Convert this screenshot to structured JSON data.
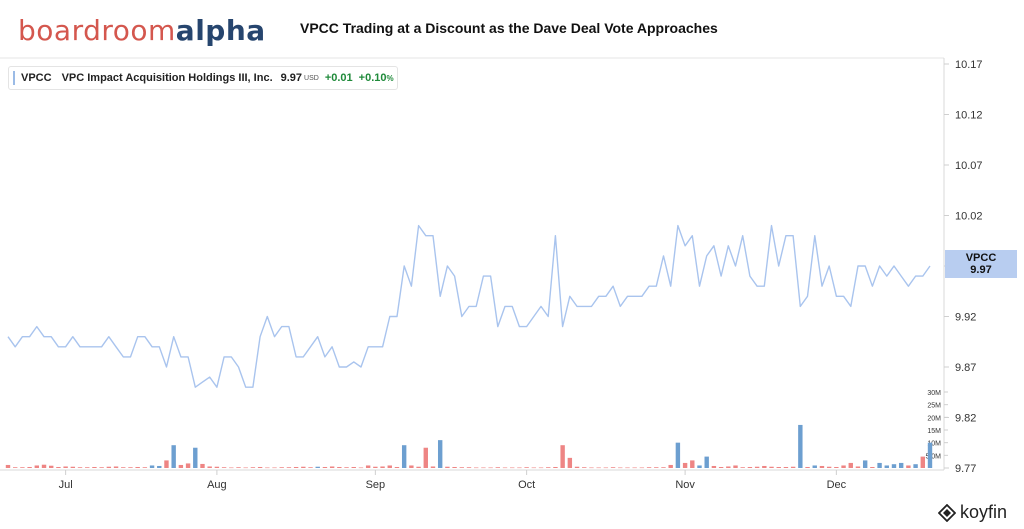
{
  "logo": {
    "part1": "boardroom",
    "part2": "alpha"
  },
  "title": "VPCC Trading at a Discount as the Dave Deal Vote Approaches",
  "legend": {
    "ticker": "VPCC",
    "name": "VPC Impact Acquisition Holdings III, Inc.",
    "price": "9.97",
    "currency": "USD",
    "change": "+0.01",
    "change_pct": "+0.10",
    "pct_sign": "%"
  },
  "price_tag": {
    "ticker": "VPCC",
    "price": "9.97"
  },
  "watermark": {
    "brand": "koyfin",
    "icon": "koyfin-logo-icon"
  },
  "colors": {
    "line": "#a9c4ee",
    "vol_up": "#6d9fd0",
    "vol_down": "#ee8584",
    "tag": "#b8cdf0",
    "positive": "#1f8a3a"
  },
  "chart_data": {
    "type": "line",
    "series": [
      {
        "name": "VPCC",
        "values": [
          9.9,
          9.89,
          9.9,
          9.9,
          9.91,
          9.9,
          9.9,
          9.89,
          9.89,
          9.9,
          9.89,
          9.89,
          9.89,
          9.89,
          9.9,
          9.89,
          9.88,
          9.88,
          9.9,
          9.9,
          9.89,
          9.89,
          9.87,
          9.9,
          9.88,
          9.88,
          9.85,
          9.855,
          9.86,
          9.85,
          9.88,
          9.88,
          9.87,
          9.85,
          9.85,
          9.9,
          9.92,
          9.9,
          9.91,
          9.91,
          9.88,
          9.88,
          9.89,
          9.9,
          9.88,
          9.89,
          9.87,
          9.87,
          9.875,
          9.87,
          9.89,
          9.89,
          9.89,
          9.92,
          9.92,
          9.97,
          9.95,
          10.01,
          10.0,
          10.0,
          9.94,
          9.97,
          9.96,
          9.92,
          9.93,
          9.93,
          9.96,
          9.96,
          9.91,
          9.93,
          9.93,
          9.91,
          9.91,
          9.92,
          9.93,
          9.92,
          10.0,
          9.91,
          9.94,
          9.93,
          9.93,
          9.93,
          9.94,
          9.94,
          9.95,
          9.93,
          9.94,
          9.94,
          9.94,
          9.95,
          9.95,
          9.98,
          9.95,
          10.01,
          9.99,
          10.0,
          9.95,
          9.98,
          9.99,
          9.96,
          9.99,
          9.97,
          10.0,
          9.96,
          9.95,
          9.95,
          10.01,
          9.97,
          10.0,
          10.0,
          9.93,
          9.94,
          10.0,
          9.95,
          9.97,
          9.94,
          9.94,
          9.93,
          9.97,
          9.97,
          9.95,
          9.97,
          9.96,
          9.97,
          9.96,
          9.95,
          9.96,
          9.96,
          9.97
        ]
      }
    ],
    "volume_units": "M",
    "volume": [
      1.2,
      0.3,
      0.3,
      0.4,
      1.0,
      1.3,
      0.9,
      0.4,
      0.6,
      0.5,
      0.3,
      0.3,
      0.4,
      0.3,
      0.5,
      0.6,
      0.3,
      0.3,
      0.4,
      0.3,
      1.0,
      0.8,
      3.0,
      9.0,
      1.2,
      1.8,
      8.0,
      1.6,
      0.6,
      0.5,
      0.3,
      0.2,
      0.3,
      0.2,
      0.3,
      0.4,
      0.2,
      0.2,
      0.3,
      0.3,
      0.4,
      0.5,
      0.3,
      0.5,
      0.4,
      0.6,
      0.4,
      0.3,
      0.4,
      0.2,
      1.0,
      0.5,
      0.6,
      1.0,
      0.4,
      9.0,
      1.0,
      0.5,
      8.0,
      0.6,
      11.0,
      0.5,
      0.4,
      0.3,
      0.3,
      0.2,
      0.2,
      0.2,
      0.3,
      0.2,
      0.2,
      0.2,
      0.3,
      0.2,
      0.2,
      0.3,
      0.4,
      9.0,
      4.0,
      0.5,
      0.3,
      0.2,
      0.2,
      0.2,
      0.3,
      0.2,
      0.2,
      0.2,
      0.2,
      0.3,
      0.3,
      0.3,
      1.2,
      10.0,
      2.0,
      3.0,
      1.0,
      4.5,
      0.8,
      0.4,
      0.6,
      1.0,
      0.3,
      0.4,
      0.5,
      0.8,
      0.5,
      0.4,
      0.4,
      0.5,
      17.0,
      0.4,
      1.0,
      0.8,
      0.5,
      0.4,
      1.0,
      2.0,
      0.6,
      3.0,
      0.4,
      2.0,
      1.0,
      1.5,
      2.0,
      1.0,
      1.5,
      4.5,
      10.0
    ],
    "volume_direction": [
      "d",
      "d",
      "d",
      "d",
      "d",
      "d",
      "d",
      "d",
      "d",
      "d",
      "d",
      "d",
      "d",
      "d",
      "d",
      "d",
      "d",
      "d",
      "d",
      "d",
      "u",
      "u",
      "d",
      "u",
      "d",
      "d",
      "u",
      "d",
      "d",
      "d",
      "d",
      "d",
      "d",
      "d",
      "d",
      "d",
      "d",
      "d",
      "d",
      "d",
      "d",
      "d",
      "d",
      "u",
      "d",
      "d",
      "d",
      "d",
      "d",
      "d",
      "d",
      "d",
      "d",
      "d",
      "d",
      "u",
      "d",
      "d",
      "d",
      "d",
      "u",
      "d",
      "d",
      "d",
      "d",
      "d",
      "d",
      "d",
      "d",
      "d",
      "d",
      "d",
      "d",
      "d",
      "d",
      "d",
      "d",
      "d",
      "d",
      "d",
      "d",
      "d",
      "d",
      "d",
      "d",
      "d",
      "d",
      "d",
      "d",
      "d",
      "d",
      "d",
      "d",
      "u",
      "d",
      "d",
      "u",
      "u",
      "d",
      "d",
      "d",
      "d",
      "d",
      "d",
      "d",
      "d",
      "d",
      "d",
      "d",
      "d",
      "u",
      "d",
      "u",
      "d",
      "d",
      "d",
      "d",
      "d",
      "d",
      "u",
      "d",
      "u",
      "u",
      "u",
      "u",
      "d",
      "u",
      "d",
      "u",
      "d",
      "d"
    ],
    "x_ticks": [
      {
        "label": "Jul",
        "index": 8
      },
      {
        "label": "Aug",
        "index": 29
      },
      {
        "label": "Sep",
        "index": 51
      },
      {
        "label": "Oct",
        "index": 72
      },
      {
        "label": "Nov",
        "index": 94
      },
      {
        "label": "Dec",
        "index": 115
      }
    ],
    "y_ticks": [
      "10.17",
      "10.12",
      "10.07",
      "10.02",
      "9.97",
      "9.92",
      "9.87",
      "9.82",
      "9.77"
    ],
    "y_tick_values": [
      10.17,
      10.12,
      10.07,
      10.02,
      9.97,
      9.92,
      9.87,
      9.82,
      9.77
    ],
    "ylim": [
      9.77,
      10.17
    ],
    "volume_ticks": [
      {
        "label": "30M",
        "value": 30
      },
      {
        "label": "25M",
        "value": 25
      },
      {
        "label": "20M",
        "value": 20
      },
      {
        "label": "15M",
        "value": 15
      },
      {
        "label": "10M",
        "value": 10
      },
      {
        "label": "5.0M",
        "value": 5
      }
    ],
    "volume_max": 30,
    "title": "",
    "xlabel": "",
    "ylabel": ""
  }
}
